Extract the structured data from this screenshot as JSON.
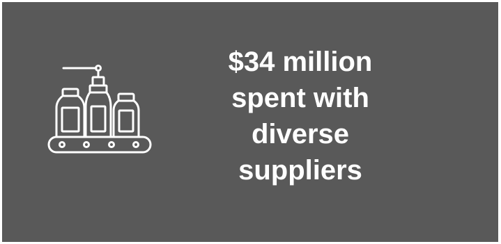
{
  "icon": "bottling-conveyor-icon",
  "colors": {
    "background": "#595959",
    "text": "#ffffff",
    "icon_stroke": "#ffffff"
  },
  "stat": {
    "lines": [
      "$34 million",
      "spent with",
      "diverse",
      "suppliers"
    ]
  }
}
